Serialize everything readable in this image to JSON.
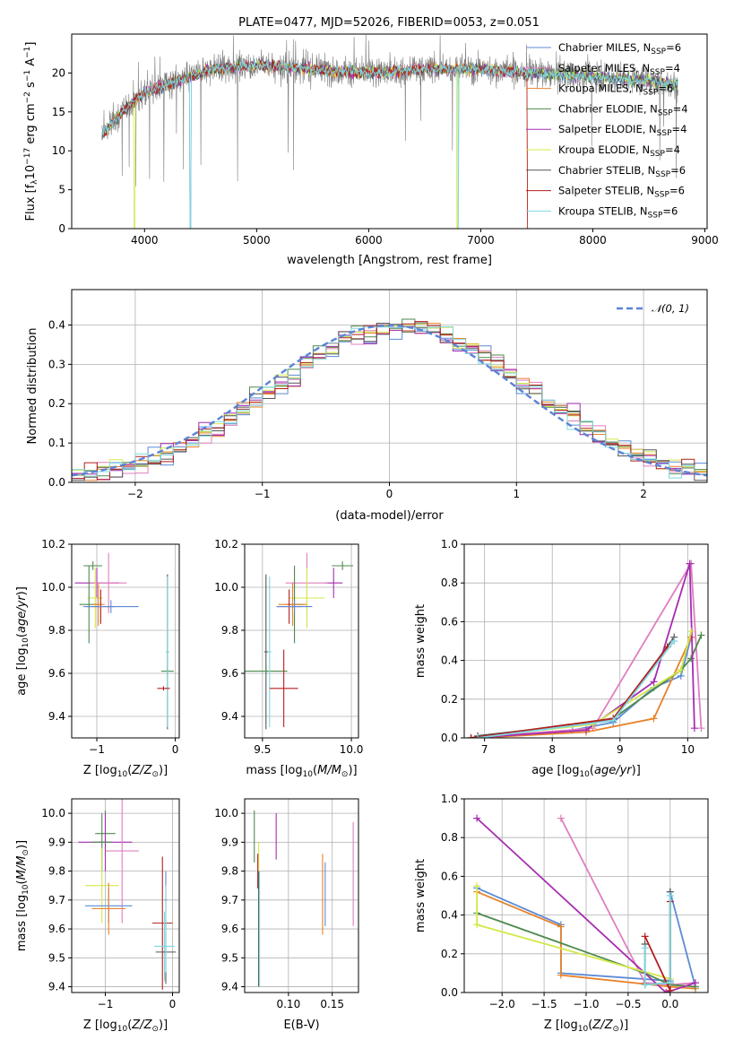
{
  "colors": {
    "chabrier_miles": "#5b8bd6",
    "salpeter_miles": "#e07fbf",
    "kroupa_miles": "#e8822a",
    "chabrier_elodie": "#4e8a4e",
    "salpeter_elodie": "#a52db0",
    "kroupa_elodie": "#d4e84a",
    "chabrier_stelib": "#555555",
    "salpeter_stelib": "#b41e1e",
    "kroupa_stelib": "#7fd8e0",
    "normal": "#5b84d6"
  },
  "chart_data": [
    {
      "id": "spectrum",
      "type": "line",
      "title": "PLATE=0477, MJD=52026, FIBERID=0053, z=0.051",
      "xlabel": "wavelength [Angstrom, rest frame]",
      "ylabel": "Flux [f_λ 10^-17 erg cm^-2 s^-1 A^-1]",
      "xlim": [
        3350,
        9020
      ],
      "ylim": [
        0,
        25
      ],
      "xticks": [
        "4000",
        "5000",
        "6000",
        "7000",
        "8000",
        "9000"
      ],
      "yticks": [
        "0",
        "5",
        "10",
        "15",
        "20"
      ],
      "grid": false,
      "legend_position": "right",
      "legend": [
        "Chabrier MILES, N_SSP=6",
        "Salpeter MILES, N_SSP=4",
        "Kroupa MILES, N_SSP=6",
        "Chabrier ELODIE, N_SSP=4",
        "Salpeter ELODIE, N_SSP=4",
        "Kroupa ELODIE, N_SSP=4",
        "Chabrier STELIB, N_SSP=6",
        "Salpeter STELIB, N_SSP=6",
        "Kroupa STELIB, N_SSP=6"
      ],
      "data_range_wavelength": [
        3620,
        8760
      ],
      "continuum": [
        [
          3620,
          12
        ],
        [
          3800,
          15
        ],
        [
          4000,
          17.5
        ],
        [
          4300,
          19
        ],
        [
          4600,
          20.5
        ],
        [
          5000,
          21
        ],
        [
          5500,
          20.5
        ],
        [
          6000,
          20
        ],
        [
          6500,
          20.5
        ],
        [
          7000,
          20.5
        ],
        [
          7500,
          20
        ],
        [
          8000,
          19.5
        ],
        [
          8500,
          19
        ],
        [
          8760,
          18.5
        ]
      ]
    },
    {
      "id": "residual-histogram",
      "type": "line",
      "xlabel": "(data-model)/error",
      "ylabel": "Normed distribution",
      "xlim": [
        -2.5,
        2.5
      ],
      "ylim": [
        0,
        0.49
      ],
      "xticks": [
        "−2",
        "−1",
        "0",
        "1",
        "2"
      ],
      "yticks": [
        "0.0",
        "0.1",
        "0.2",
        "0.3",
        "0.4"
      ],
      "grid": true,
      "legend_position": "top-right",
      "legend": [
        "𝒩(0, 1)"
      ],
      "bin_width": 0.1
    },
    {
      "id": "age-vs-z",
      "type": "scatter",
      "xlabel": "Z [log10(Z/Z⊙)]",
      "ylabel": "age  [log10(age/yr)]",
      "xlim": [
        -1.32,
        0.05
      ],
      "ylim": [
        9.3,
        10.2
      ],
      "xticks": [
        "−1",
        "0"
      ],
      "yticks": [
        "9.4",
        "9.6",
        "9.8",
        "10.0",
        "10.2"
      ],
      "points": [
        {
          "c": "chabrier_elodie",
          "x": -1.05,
          "xe": 0.12,
          "y": 10.1,
          "ye": 0.02
        },
        {
          "c": "salpeter_elodie",
          "x": -1.0,
          "xe": 0.28,
          "y": 10.02,
          "ye": 0.07
        },
        {
          "c": "salpeter_miles",
          "x": -0.85,
          "xe": 0.23,
          "y": 10.02,
          "ye": 0.14
        },
        {
          "c": "kroupa_elodie",
          "x": -1.02,
          "xe": 0.1,
          "y": 9.95,
          "ye": 0.14
        },
        {
          "c": "chabrier_elodie",
          "x": -1.1,
          "xe": 0.12,
          "y": 9.92,
          "ye": 0.18
        },
        {
          "c": "kroupa_miles",
          "x": -0.98,
          "xe": 0.08,
          "y": 9.92,
          "ye": 0.1
        },
        {
          "c": "salpeter_stelib",
          "x": -0.95,
          "xe": 0.18,
          "y": 9.91,
          "ye": 0.08
        },
        {
          "c": "chabrier_miles",
          "x": -0.82,
          "xe": 0.35,
          "y": 9.91,
          "ye": 0.03
        },
        {
          "c": "chabrier_stelib",
          "x": -0.1,
          "xe": 0.02,
          "y": 9.7,
          "ye": 0.36
        },
        {
          "c": "chabrier_elodie",
          "x": -0.1,
          "xe": 0.08,
          "y": 9.61,
          "ye": 0.02
        },
        {
          "c": "kroupa_stelib",
          "x": -0.1,
          "xe": 0.02,
          "y": 9.7,
          "ye": 0.35
        },
        {
          "c": "salpeter_stelib",
          "x": -0.15,
          "xe": 0.08,
          "y": 9.53,
          "ye": 0.01
        }
      ]
    },
    {
      "id": "age-vs-mass",
      "type": "scatter",
      "xlabel": "mass [log10(M/M⊙)]",
      "ylabel": "",
      "xlim": [
        9.4,
        10.04
      ],
      "ylim": [
        9.3,
        10.2
      ],
      "xticks": [
        "9.5",
        "10.0"
      ],
      "yticks": [
        "9.4",
        "9.6",
        "9.8",
        "10.0",
        "10.2"
      ],
      "points": [
        {
          "c": "chabrier_elodie",
          "x": 9.95,
          "xe": 0.06,
          "y": 10.1,
          "ye": 0.02
        },
        {
          "c": "salpeter_elodie",
          "x": 9.9,
          "xe": 0.05,
          "y": 10.02,
          "ye": 0.07
        },
        {
          "c": "salpeter_miles",
          "x": 9.75,
          "xe": 0.12,
          "y": 10.02,
          "ye": 0.14
        },
        {
          "c": "kroupa_elodie",
          "x": 9.75,
          "xe": 0.1,
          "y": 9.95,
          "ye": 0.14
        },
        {
          "c": "chabrier_elodie",
          "x": 9.68,
          "xe": 0.05,
          "y": 9.92,
          "ye": 0.18
        },
        {
          "c": "kroupa_miles",
          "x": 9.67,
          "xe": 0.08,
          "y": 9.92,
          "ye": 0.1
        },
        {
          "c": "salpeter_stelib",
          "x": 9.65,
          "xe": 0.07,
          "y": 9.91,
          "ye": 0.08
        },
        {
          "c": "chabrier_miles",
          "x": 9.68,
          "xe": 0.1,
          "y": 9.91,
          "ye": 0.03
        },
        {
          "c": "chabrier_stelib",
          "x": 9.52,
          "xe": 0.01,
          "y": 9.7,
          "ye": 0.36
        },
        {
          "c": "chabrier_elodie",
          "x": 9.52,
          "xe": 0.12,
          "y": 9.61,
          "ye": 0.02
        },
        {
          "c": "kroupa_stelib",
          "x": 9.54,
          "xe": 0.01,
          "y": 9.7,
          "ye": 0.35
        },
        {
          "c": "salpeter_stelib",
          "x": 9.62,
          "xe": 0.08,
          "y": 9.53,
          "ye": 0.18
        }
      ]
    },
    {
      "id": "weight-vs-age",
      "type": "line",
      "xlabel": "age  [log10(age/yr)]",
      "ylabel": "mass weight",
      "xlim": [
        6.7,
        10.3
      ],
      "ylim": [
        0,
        1.0
      ],
      "xticks": [
        "7",
        "8",
        "9",
        "10"
      ],
      "yticks": [
        "0.0",
        "0.2",
        "0.4",
        "0.6",
        "0.8",
        "1.0"
      ],
      "grid": true,
      "series": [
        {
          "c": "chabrier_miles",
          "x": [
            6.8,
            8.3,
            8.9,
            9.5,
            9.9,
            10.05
          ],
          "y": [
            0.0,
            0.04,
            0.08,
            0.26,
            0.32,
            0.52
          ]
        },
        {
          "c": "salpeter_miles",
          "x": [
            6.8,
            8.6,
            10.05,
            10.2
          ],
          "y": [
            0.0,
            0.05,
            0.9,
            0.05
          ]
        },
        {
          "c": "kroupa_miles",
          "x": [
            6.9,
            8.5,
            9.5,
            10.05
          ],
          "y": [
            0.0,
            0.03,
            0.1,
            0.52
          ]
        },
        {
          "c": "chabrier_elodie",
          "x": [
            6.8,
            8.9,
            9.9,
            10.05,
            10.2
          ],
          "y": [
            0.0,
            0.1,
            0.35,
            0.41,
            0.53
          ]
        },
        {
          "c": "salpeter_elodie",
          "x": [
            6.8,
            8.5,
            9.5,
            10.03,
            10.1
          ],
          "y": [
            0.0,
            0.04,
            0.29,
            0.9,
            0.05
          ]
        },
        {
          "c": "kroupa_elodie",
          "x": [
            6.8,
            8.6,
            9.9,
            10.05
          ],
          "y": [
            0.0,
            0.07,
            0.35,
            0.55
          ]
        },
        {
          "c": "chabrier_stelib",
          "x": [
            6.9,
            8.9,
            9.8
          ],
          "y": [
            0.01,
            0.09,
            0.52
          ]
        },
        {
          "c": "salpeter_stelib",
          "x": [
            6.8,
            8.9,
            9.7
          ],
          "y": [
            0.0,
            0.1,
            0.47
          ]
        },
        {
          "c": "kroupa_stelib",
          "x": [
            6.9,
            8.9,
            9.8
          ],
          "y": [
            0.0,
            0.09,
            0.5
          ]
        }
      ]
    },
    {
      "id": "mass-vs-z",
      "type": "scatter",
      "xlabel": "Z [log10(Z/Z⊙)]",
      "ylabel": "mass [log10(M/M⊙)]",
      "xlim": [
        -1.5,
        0.1
      ],
      "ylim": [
        9.38,
        10.05
      ],
      "xticks": [
        "−1",
        "0"
      ],
      "yticks": [
        "9.4",
        "9.5",
        "9.6",
        "9.7",
        "9.8",
        "9.9",
        "10.0"
      ],
      "points": [
        {
          "c": "chabrier_elodie",
          "x": -1.0,
          "xe": 0.15,
          "y": 9.93,
          "ye": 0.08
        },
        {
          "c": "salpeter_elodie",
          "x": -1.0,
          "xe": 0.4,
          "y": 9.9,
          "ye": 0.1
        },
        {
          "c": "chabrier_elodie",
          "x": -1.05,
          "xe": 0.15,
          "y": 9.9,
          "ye": 0.1
        },
        {
          "c": "salpeter_miles",
          "x": -0.75,
          "xe": 0.25,
          "y": 9.87,
          "ye": 0.25
        },
        {
          "c": "kroupa_elodie",
          "x": -1.05,
          "xe": 0.25,
          "y": 9.75,
          "ye": 0.13
        },
        {
          "c": "chabrier_miles",
          "x": -0.95,
          "xe": 0.35,
          "y": 9.68,
          "ye": 0.06
        },
        {
          "c": "kroupa_miles",
          "x": -0.95,
          "xe": 0.25,
          "y": 9.67,
          "ye": 0.09
        },
        {
          "c": "salpeter_stelib",
          "x": -0.15,
          "xe": 0.15,
          "y": 9.62,
          "ye": 0.23
        },
        {
          "c": "kroupa_stelib",
          "x": -0.12,
          "xe": 0.15,
          "y": 9.54,
          "ye": 0.12
        },
        {
          "c": "chabrier_stelib",
          "x": -0.1,
          "xe": 0.15,
          "y": 9.52,
          "ye": 0.11
        },
        {
          "c": "chabrier_miles",
          "x": -0.1,
          "xe": 0.02,
          "y": 9.7,
          "ye": 0.1
        },
        {
          "c": "kroupa_stelib",
          "x": -0.1,
          "xe": 0.02,
          "y": 9.6,
          "ye": 0.15
        }
      ]
    },
    {
      "id": "mass-vs-ebv",
      "type": "scatter",
      "xlabel": "E(B-V)",
      "ylabel": "",
      "xlim": [
        0.05,
        0.18
      ],
      "ylim": [
        9.38,
        10.05
      ],
      "xticks": [
        "0.10",
        "0.15"
      ],
      "yticks": [
        "9.4",
        "9.5",
        "9.6",
        "9.7",
        "9.8",
        "9.9",
        "10.0"
      ],
      "points": [
        {
          "c": "chabrier_elodie",
          "x": 0.061,
          "y": 9.92,
          "ye": 0.09
        },
        {
          "c": "kroupa_elodie",
          "x": 0.066,
          "y": 9.79,
          "ye": 0.11
        },
        {
          "c": "salpeter_stelib",
          "x": 0.065,
          "y": 9.8,
          "ye": 0.06
        },
        {
          "c": "salpeter_elodie",
          "x": 0.086,
          "y": 9.92,
          "ye": 0.08
        },
        {
          "c": "chabrier_stelib",
          "x": 0.066,
          "y": 9.6,
          "ye": 0.2
        },
        {
          "c": "kroupa_stelib",
          "x": 0.067,
          "y": 9.6,
          "ye": 0.2
        },
        {
          "c": "kroupa_miles",
          "x": 0.139,
          "y": 9.72,
          "ye": 0.14
        },
        {
          "c": "chabrier_miles",
          "x": 0.142,
          "y": 9.72,
          "ye": 0.11
        },
        {
          "c": "salpeter_miles",
          "x": 0.174,
          "y": 9.79,
          "ye": 0.18
        }
      ]
    },
    {
      "id": "weight-vs-z",
      "type": "line",
      "xlabel": "Z [log10(Z/Z⊙)]",
      "ylabel": "mass weight",
      "xlim": [
        -2.45,
        0.45
      ],
      "ylim": [
        0,
        1.0
      ],
      "xticks": [
        "−2.0",
        "−1.5",
        "−1.0",
        "−0.5",
        "0.0"
      ],
      "yticks": [
        "0.0",
        "0.2",
        "0.4",
        "0.6",
        "0.8",
        "1.0"
      ],
      "grid": true,
      "series": [
        {
          "c": "chabrier_miles",
          "x": [
            -2.3,
            -1.3,
            -1.3,
            0.0,
            0.0,
            0.3
          ],
          "y": [
            0.54,
            0.35,
            0.1,
            0.06,
            0.52,
            0.03
          ]
        },
        {
          "c": "salpeter_miles",
          "x": [
            -1.3,
            -0.3,
            0.0,
            0.3
          ],
          "y": [
            0.9,
            0.05,
            0.04,
            0.05
          ]
        },
        {
          "c": "kroupa_miles",
          "x": [
            -2.3,
            -1.3,
            -1.3,
            0.0,
            0.3
          ],
          "y": [
            0.52,
            0.34,
            0.09,
            0.03,
            0.02
          ]
        },
        {
          "c": "chabrier_elodie",
          "x": [
            -2.3,
            -0.3,
            0.0,
            0.3
          ],
          "y": [
            0.41,
            0.1,
            0.04,
            0.03
          ]
        },
        {
          "c": "salpeter_elodie",
          "x": [
            -2.3,
            -0.05,
            0.3
          ],
          "y": [
            0.9,
            0.0,
            0.05
          ]
        },
        {
          "c": "kroupa_elodie",
          "x": [
            -2.3,
            -2.3,
            0.0
          ],
          "y": [
            0.55,
            0.35,
            0.07
          ]
        },
        {
          "c": "chabrier_stelib",
          "x": [
            -0.3,
            -0.3,
            0.0,
            0.0
          ],
          "y": [
            0.25,
            0.04,
            0.05,
            0.52
          ]
        },
        {
          "c": "salpeter_stelib",
          "x": [
            -0.3,
            0.0,
            0.0
          ],
          "y": [
            0.29,
            0.01,
            0.47
          ]
        },
        {
          "c": "kroupa_stelib",
          "x": [
            -0.3,
            -0.3,
            0.0,
            0.0
          ],
          "y": [
            0.23,
            0.04,
            0.05,
            0.5
          ]
        }
      ]
    }
  ]
}
